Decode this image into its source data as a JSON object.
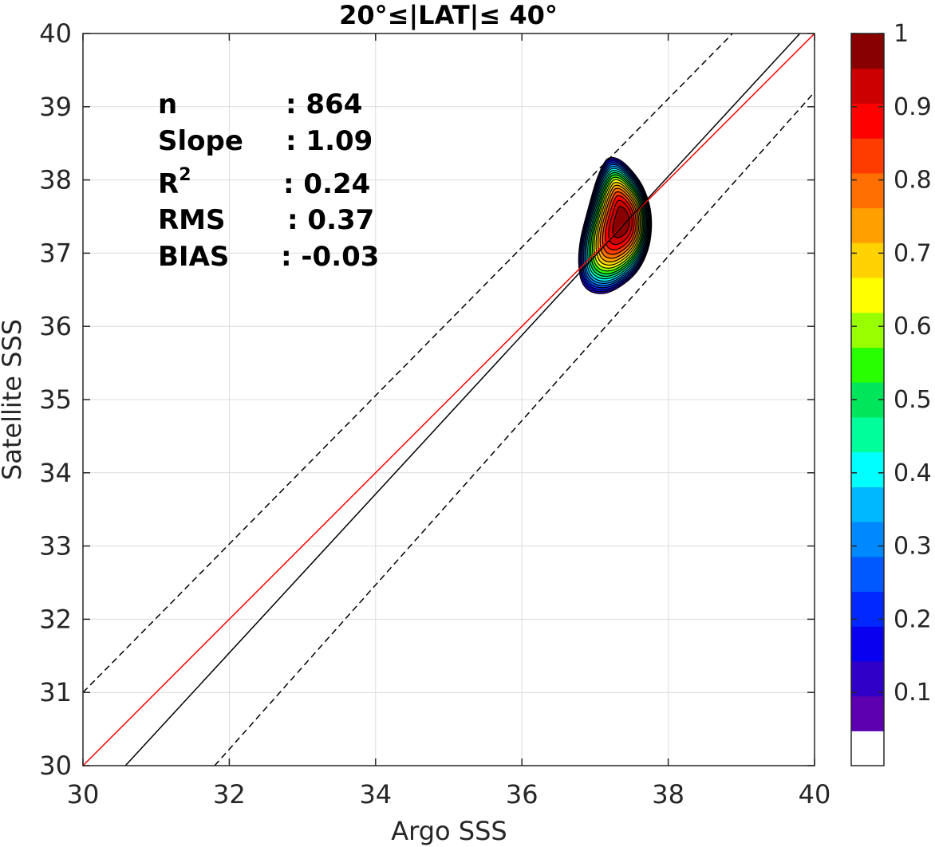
{
  "chart_data": {
    "type": "contour",
    "title": "20°≤|LAT|≤ 40°",
    "xlabel": "Argo SSS",
    "ylabel": "Satellite SSS",
    "xlim": [
      30,
      40
    ],
    "ylim": [
      30,
      40
    ],
    "xticks": [
      "30",
      "32",
      "34",
      "36",
      "38",
      "40"
    ],
    "yticks": [
      "30",
      "31",
      "32",
      "33",
      "34",
      "35",
      "36",
      "37",
      "38",
      "39",
      "40"
    ],
    "grid": true,
    "stats": {
      "n_label": "n",
      "n_value": ": 864",
      "slope_label": "Slope",
      "slope_value": ": 1.09",
      "r2_label": "R",
      "r2_sup": "2",
      "r2_value": ": 0.24",
      "rms_label": "RMS",
      "rms_value": ": 0.37",
      "bias_label": "BIAS",
      "bias_value": ": -0.03"
    },
    "lines": [
      {
        "style": "one-to-one",
        "color": "#ff0000",
        "points": [
          [
            30,
            30
          ],
          [
            40,
            40
          ]
        ]
      },
      {
        "style": "regression",
        "color": "#000000",
        "points": [
          [
            30.58,
            30
          ],
          [
            39.8,
            40
          ]
        ]
      },
      {
        "style": "upper-bound-dashed",
        "color": "#000000",
        "points": [
          [
            30,
            31
          ],
          [
            38.88,
            40
          ]
        ]
      },
      {
        "style": "lower-bound-dashed",
        "color": "#000000",
        "points": [
          [
            31.8,
            30
          ],
          [
            40,
            39.2
          ]
        ]
      }
    ],
    "density": {
      "center": [
        37.38,
        37.44
      ],
      "levels": [
        0.05,
        0.1,
        0.15,
        0.2,
        0.25,
        0.3,
        0.35,
        0.4,
        0.45,
        0.5,
        0.55,
        0.6,
        0.65,
        0.7,
        0.75,
        0.8,
        0.85,
        0.9,
        0.95
      ],
      "outer_contour": [
        [
          37.18,
          38.32
        ],
        [
          37.33,
          38.3
        ],
        [
          37.5,
          38.15
        ],
        [
          37.66,
          37.92
        ],
        [
          37.76,
          37.63
        ],
        [
          37.78,
          37.33
        ],
        [
          37.73,
          37.03
        ],
        [
          37.6,
          36.76
        ],
        [
          37.4,
          36.56
        ],
        [
          37.15,
          36.43
        ],
        [
          36.93,
          36.45
        ],
        [
          36.8,
          36.6
        ],
        [
          36.76,
          36.88
        ],
        [
          36.79,
          37.2
        ],
        [
          36.89,
          37.6
        ],
        [
          37.0,
          37.98
        ],
        [
          37.09,
          38.2
        ]
      ]
    },
    "colorbar": {
      "ticks": [
        "0.1",
        "0.2",
        "0.3",
        "0.4",
        "0.5",
        "0.6",
        "0.7",
        "0.8",
        "0.9",
        "1"
      ],
      "range": [
        0,
        1
      ],
      "colors": [
        "#ffffff",
        "#5c00b0",
        "#3000c8",
        "#0a00f0",
        "#0028ff",
        "#0058ff",
        "#0088ff",
        "#00b8ff",
        "#00ffff",
        "#00ff9a",
        "#00e65a",
        "#28ff00",
        "#98ff00",
        "#ffff00",
        "#ffd200",
        "#ffa000",
        "#ff6e00",
        "#ff3c00",
        "#ff0000",
        "#cc0000",
        "#880000"
      ]
    }
  }
}
